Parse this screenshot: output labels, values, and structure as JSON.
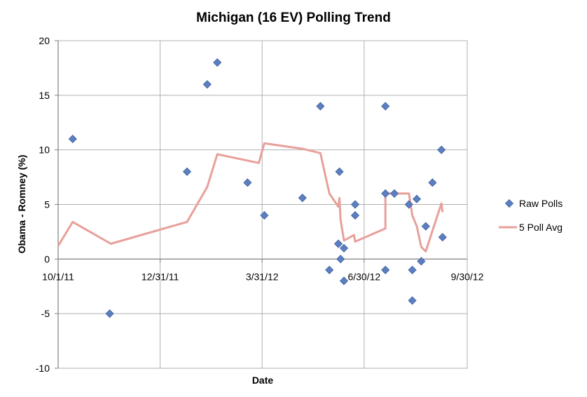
{
  "chart_data": {
    "type": "scatter",
    "title": "Michigan (16 EV) Polling Trend",
    "xlabel": "Date",
    "ylabel": "Obama - Romney (%)",
    "x_axis": {
      "type": "date",
      "min": "2011-10-01",
      "max": "2012-09-30",
      "tick_dates": [
        "2011-10-01",
        "2011-12-31",
        "2012-03-31",
        "2012-06-30",
        "2012-09-30"
      ],
      "tick_labels": [
        "10/1/11",
        "12/31/11",
        "3/31/12",
        "6/30/12",
        "9/30/12"
      ]
    },
    "ylim": [
      -10,
      20
    ],
    "y_ticks": [
      -10,
      -5,
      0,
      5,
      10,
      15,
      20
    ],
    "grid": true,
    "legend_position": "right",
    "colors": {
      "raw": "#5b7fc1",
      "raw_edge": "#3f5f9d",
      "avg": "#e8a09b",
      "grid": "#b0b0b0",
      "axis": "#808080"
    },
    "series": [
      {
        "name": "Raw Polls",
        "kind": "scatter",
        "points": [
          {
            "x": "2011-10-14",
            "y": 11
          },
          {
            "x": "2011-11-16",
            "y": -5
          },
          {
            "x": "2012-01-24",
            "y": 8
          },
          {
            "x": "2012-02-11",
            "y": 16
          },
          {
            "x": "2012-02-20",
            "y": 18
          },
          {
            "x": "2012-03-18",
            "y": 7
          },
          {
            "x": "2012-04-02",
            "y": 4
          },
          {
            "x": "2012-05-06",
            "y": 5.6
          },
          {
            "x": "2012-05-22",
            "y": 14
          },
          {
            "x": "2012-05-30",
            "y": -1
          },
          {
            "x": "2012-06-07",
            "y": 1.4
          },
          {
            "x": "2012-06-08",
            "y": 8
          },
          {
            "x": "2012-06-09",
            "y": 0
          },
          {
            "x": "2012-06-12",
            "y": -2
          },
          {
            "x": "2012-06-12",
            "y": 1
          },
          {
            "x": "2012-06-22",
            "y": 5
          },
          {
            "x": "2012-06-22",
            "y": 4
          },
          {
            "x": "2012-07-19",
            "y": 14
          },
          {
            "x": "2012-07-19",
            "y": 6
          },
          {
            "x": "2012-07-19",
            "y": -1
          },
          {
            "x": "2012-07-27",
            "y": 6
          },
          {
            "x": "2012-08-09",
            "y": 5
          },
          {
            "x": "2012-08-12",
            "y": -1
          },
          {
            "x": "2012-08-12",
            "y": -3.8
          },
          {
            "x": "2012-08-16",
            "y": 5.5
          },
          {
            "x": "2012-08-20",
            "y": -0.2
          },
          {
            "x": "2012-08-24",
            "y": 3
          },
          {
            "x": "2012-08-30",
            "y": 7
          },
          {
            "x": "2012-09-07",
            "y": 10
          },
          {
            "x": "2012-09-08",
            "y": 2
          }
        ]
      },
      {
        "name": "5 Poll Avg",
        "kind": "line",
        "points": [
          {
            "x": "2011-10-01",
            "y": 1.2
          },
          {
            "x": "2011-10-14",
            "y": 3.4
          },
          {
            "x": "2011-11-17",
            "y": 1.4
          },
          {
            "x": "2012-01-24",
            "y": 3.4
          },
          {
            "x": "2012-02-11",
            "y": 6.6
          },
          {
            "x": "2012-02-20",
            "y": 9.6
          },
          {
            "x": "2012-03-28",
            "y": 8.8
          },
          {
            "x": "2012-04-02",
            "y": 10.6
          },
          {
            "x": "2012-05-06",
            "y": 10.1
          },
          {
            "x": "2012-05-22",
            "y": 9.7
          },
          {
            "x": "2012-05-30",
            "y": 6
          },
          {
            "x": "2012-06-07",
            "y": 4.8
          },
          {
            "x": "2012-06-08",
            "y": 5.6
          },
          {
            "x": "2012-06-09",
            "y": 3.6
          },
          {
            "x": "2012-06-12",
            "y": 1.7
          },
          {
            "x": "2012-06-21",
            "y": 2.2
          },
          {
            "x": "2012-06-22",
            "y": 1.6
          },
          {
            "x": "2012-07-19",
            "y": 2.8
          },
          {
            "x": "2012-07-19",
            "y": 6
          },
          {
            "x": "2012-08-09",
            "y": 6
          },
          {
            "x": "2012-08-12",
            "y": 4
          },
          {
            "x": "2012-08-16",
            "y": 3
          },
          {
            "x": "2012-08-20",
            "y": 1.1
          },
          {
            "x": "2012-08-24",
            "y": 0.7
          },
          {
            "x": "2012-08-30",
            "y": 2.6
          },
          {
            "x": "2012-09-07",
            "y": 5.1
          },
          {
            "x": "2012-09-08",
            "y": 4.3
          }
        ]
      }
    ]
  }
}
